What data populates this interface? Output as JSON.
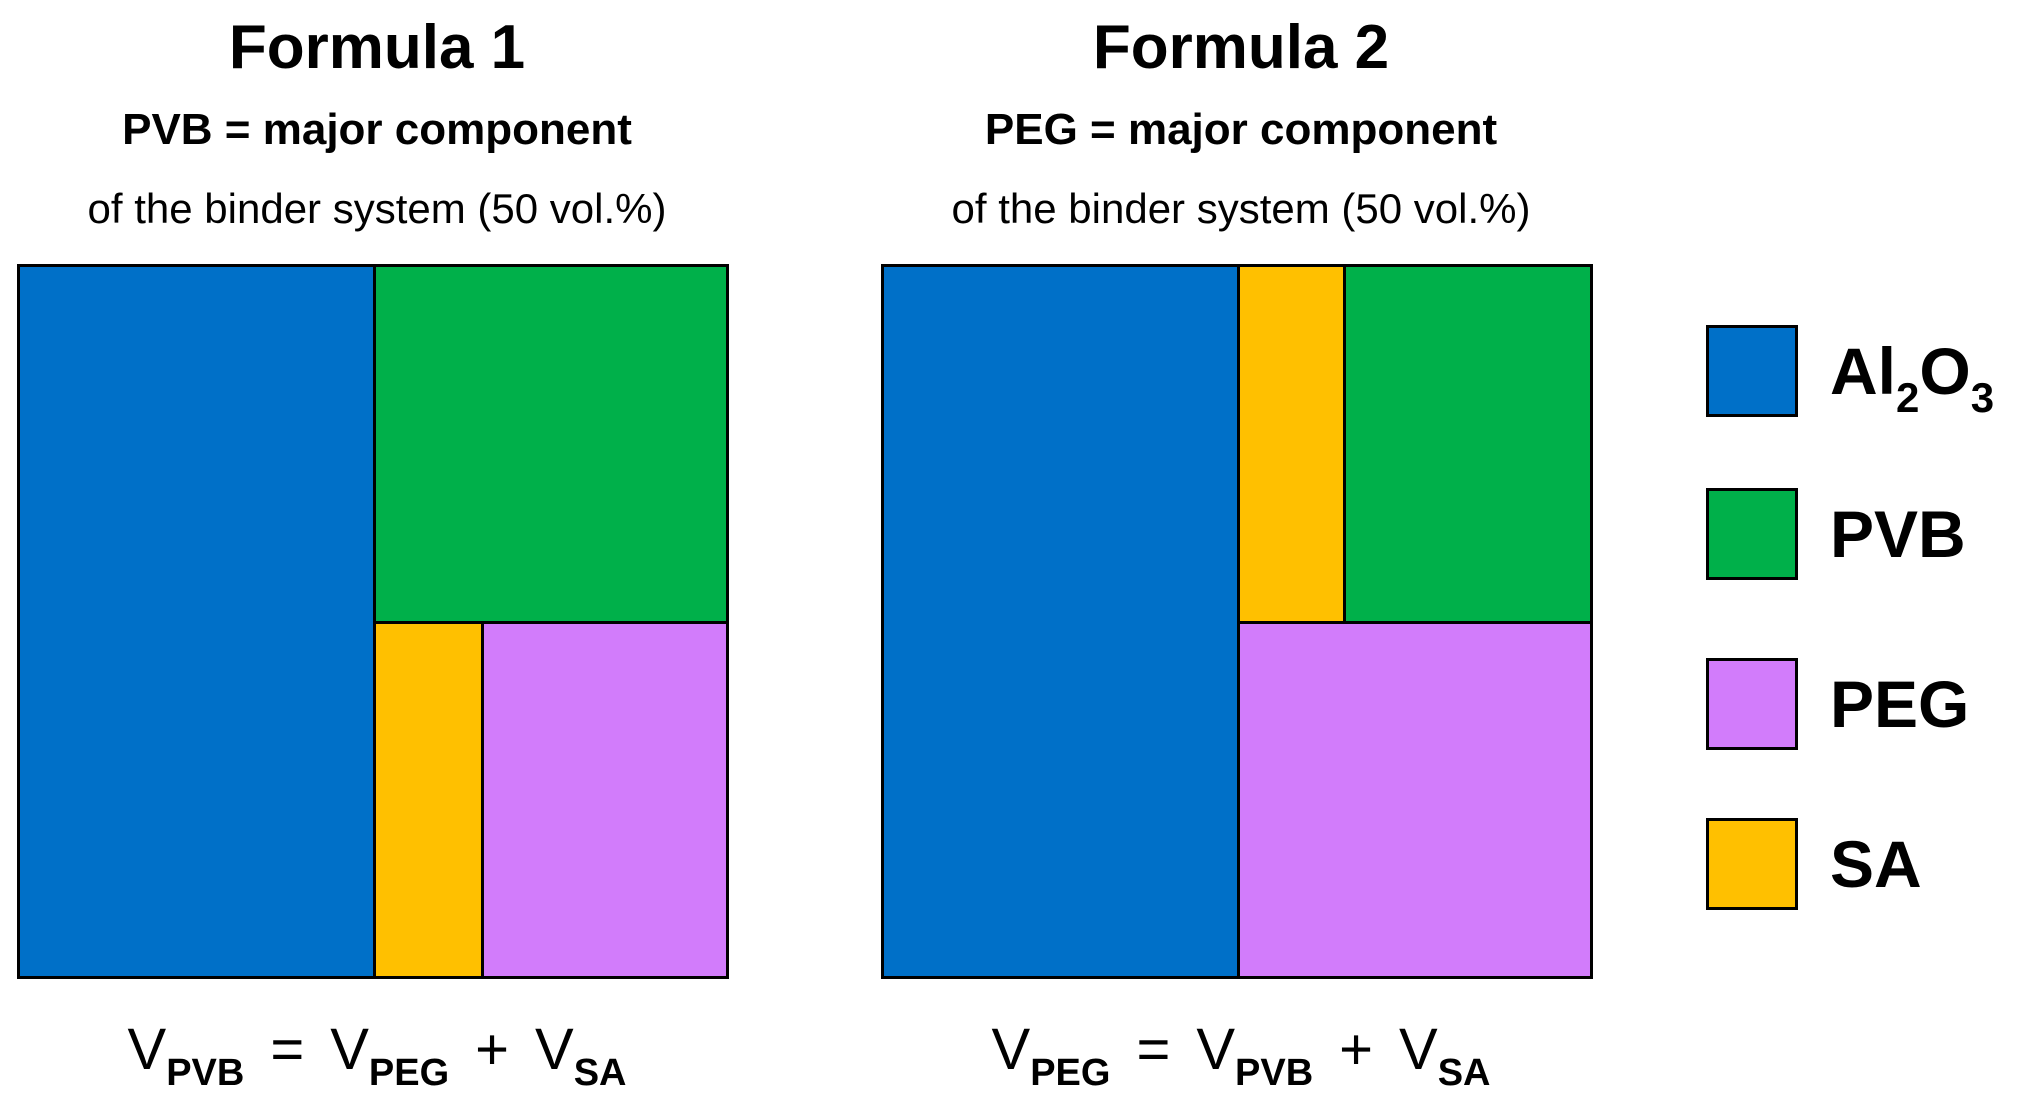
{
  "colors": {
    "Al2O3": "#0070C8",
    "PVB": "#00B04A",
    "PEG": "#D27CFB",
    "SA": "#FFC000"
  },
  "panels": [
    {
      "title": "Formula 1",
      "subtitle": "PVB = major component",
      "note": "of the binder system (50 vol.%)",
      "equation": {
        "lhs": {
          "base": "V",
          "sub": "PVB"
        },
        "eq": "=",
        "t1": {
          "base": "V",
          "sub": "PEG"
        },
        "plus": "+",
        "t2": {
          "base": "V",
          "sub": "SA"
        }
      }
    },
    {
      "title": "Formula 2",
      "subtitle": "PEG = major component",
      "note": "of the binder system (50 vol.%)",
      "equation": {
        "lhs": {
          "base": "V",
          "sub": "PEG"
        },
        "eq": "=",
        "t1": {
          "base": "V",
          "sub": "PVB"
        },
        "plus": "+",
        "t2": {
          "base": "V",
          "sub": "SA"
        }
      }
    }
  ],
  "legend": [
    {
      "key": "Al2O3",
      "label": "Al",
      "sub1": "2",
      "label2": "O",
      "sub2": "3"
    },
    {
      "key": "PVB",
      "label": "PVB"
    },
    {
      "key": "PEG",
      "label": "PEG"
    },
    {
      "key": "SA",
      "label": "SA"
    }
  ]
}
